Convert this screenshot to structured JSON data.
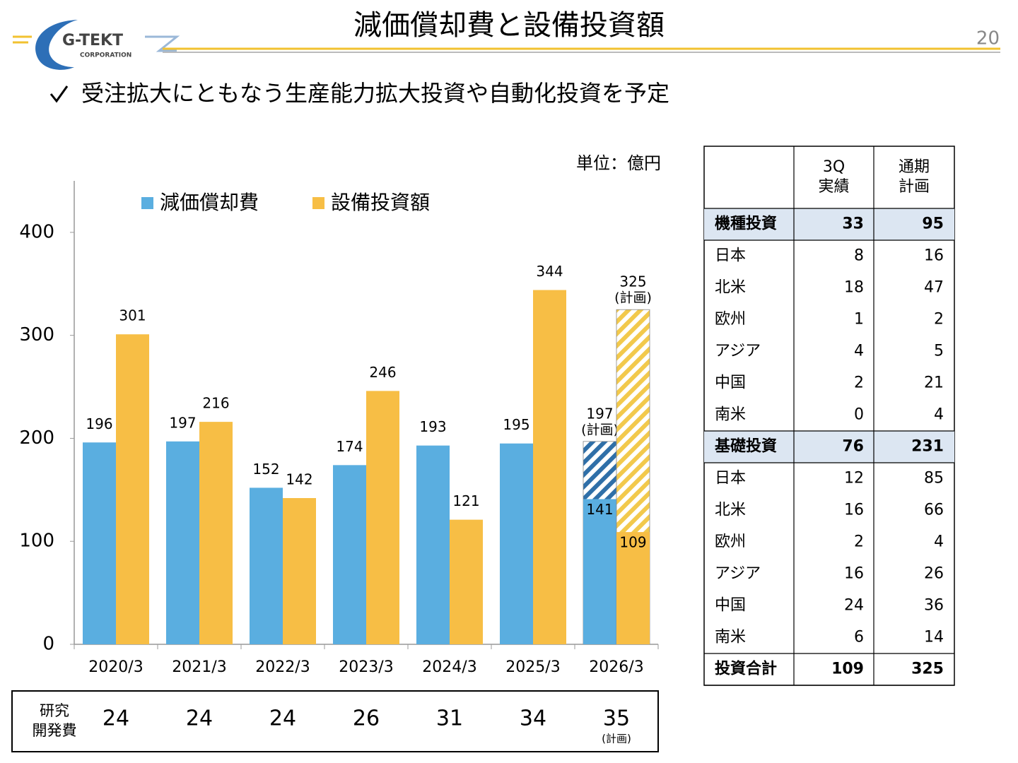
{
  "header": {
    "logo": "G-TEKT",
    "logo_sub": "CORPORATION",
    "title": "減価償却費と設備投資額",
    "page": "20"
  },
  "bullet": "受注拡大にともなう生産能力拡大投資や自動化投資を予定",
  "chart_data": {
    "type": "bar",
    "unit": "単位：億円",
    "categories": [
      "2020/3",
      "2021/3",
      "2022/3",
      "2023/3",
      "2024/3",
      "2025/3",
      "2026/3"
    ],
    "series": [
      {
        "name": "減価償却費",
        "color": "#5aaee0",
        "values": [
          196,
          197,
          152,
          174,
          193,
          195,
          197
        ],
        "actual_values": [
          null,
          null,
          null,
          null,
          null,
          null,
          141
        ]
      },
      {
        "name": "設備投資額",
        "color": "#f7be45",
        "values": [
          301,
          216,
          142,
          246,
          121,
          344,
          325
        ],
        "actual_values": [
          null,
          null,
          null,
          null,
          null,
          null,
          109
        ]
      }
    ],
    "plan_note": "(計画)",
    "ylim": [
      0,
      450
    ],
    "yticks": [
      0,
      100,
      200,
      300,
      400
    ],
    "grid": false,
    "legend": "top",
    "rd": {
      "label": [
        "研究",
        "開発費"
      ],
      "values": [
        24,
        24,
        24,
        26,
        31,
        34,
        35
      ],
      "note": "(計画)"
    }
  },
  "table": {
    "columns": [
      [
        "3Q",
        "実績"
      ],
      [
        "通期",
        "計画"
      ]
    ],
    "sections": [
      {
        "name": "機種投資",
        "q3": 33,
        "full": 95,
        "items": [
          [
            "日本",
            8,
            16
          ],
          [
            "北米",
            18,
            47
          ],
          [
            "欧州",
            1,
            2
          ],
          [
            "アジア",
            4,
            5
          ],
          [
            "中国",
            2,
            21
          ],
          [
            "南米",
            0,
            4
          ]
        ]
      },
      {
        "name": "基礎投資",
        "q3": 76,
        "full": 231,
        "items": [
          [
            "日本",
            12,
            85
          ],
          [
            "北米",
            16,
            66
          ],
          [
            "欧州",
            2,
            4
          ],
          [
            "アジア",
            16,
            26
          ],
          [
            "中国",
            24,
            36
          ],
          [
            "南米",
            6,
            14
          ]
        ]
      }
    ],
    "total": [
      "投資合計",
      109,
      325
    ]
  }
}
